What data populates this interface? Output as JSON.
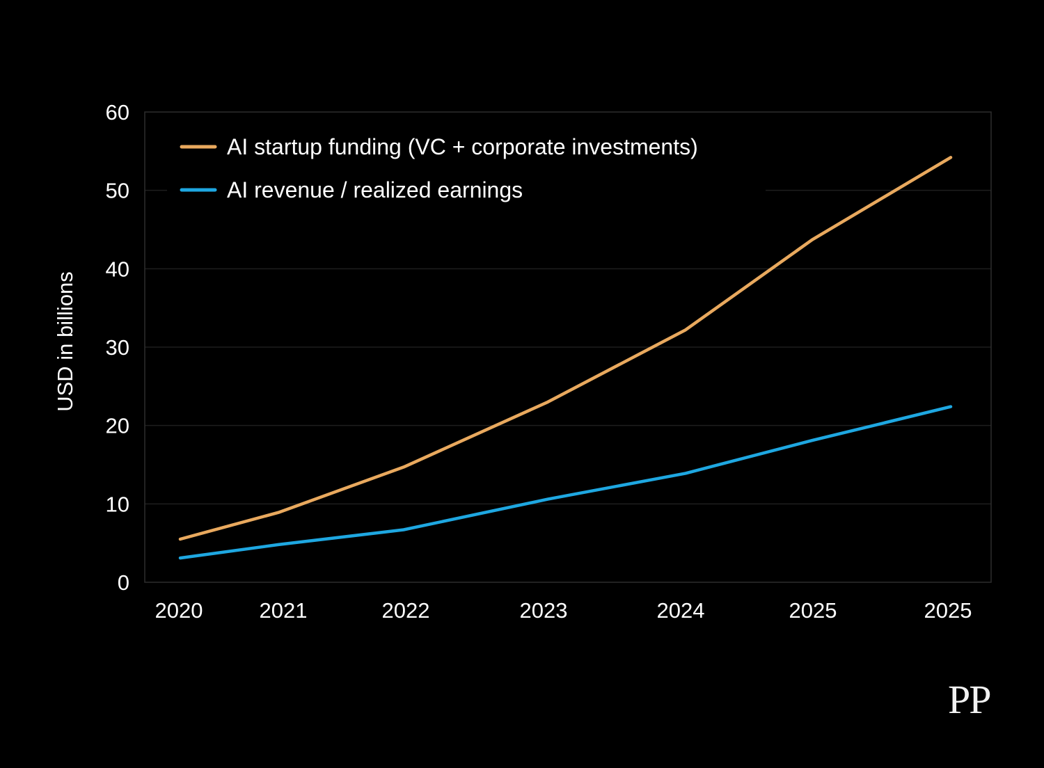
{
  "chart_data": {
    "type": "line",
    "title": "",
    "xlabel": "",
    "ylabel": "USD in billions",
    "categories": [
      "2020",
      "2021",
      "2022",
      "2023",
      "2024",
      "2025",
      "2025"
    ],
    "ylim": [
      0,
      60
    ],
    "yticks": [
      "0",
      "10",
      "20",
      "30",
      "40",
      "50",
      "60"
    ],
    "grid": true,
    "legend_position": "top-left",
    "series": [
      {
        "name": "AI startup funding (VC + corporate investments)",
        "color": "#E9A95E",
        "values": [
          5.5,
          8.9,
          14.7,
          23.0,
          32.2,
          43.7,
          54.2
        ]
      },
      {
        "name": "AI revenue / realized earnings",
        "color": "#1EA7E1",
        "values": [
          3.1,
          4.8,
          6.7,
          10.6,
          13.9,
          18.1,
          22.4
        ]
      }
    ]
  },
  "branding": {
    "logo_text": "PP"
  },
  "colors": {
    "background": "#000000",
    "gridline": "#1e1e1e",
    "frame": "#2e2e2e",
    "text": "#ffffff"
  }
}
